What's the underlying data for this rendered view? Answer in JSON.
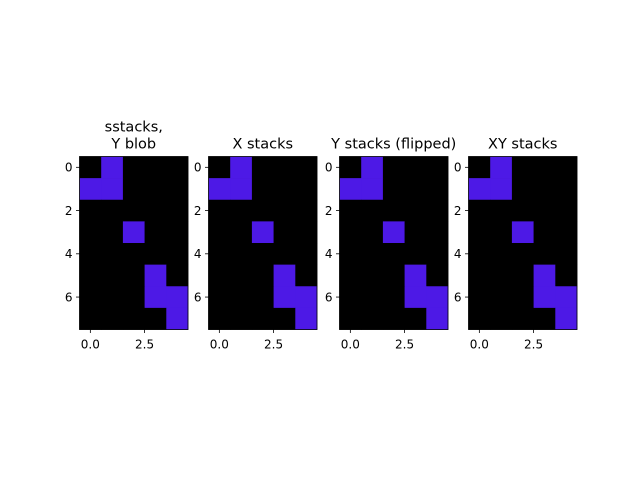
{
  "chart_data": [
    {
      "type": "heatmap",
      "title": [
        "sstacks,",
        "Y blob"
      ],
      "xlabel": "",
      "ylabel": "",
      "xlim": [
        -0.5,
        4.5
      ],
      "ylim": [
        7.5,
        -0.5
      ],
      "xticks": [
        {
          "value": 0,
          "label": "0.0"
        },
        {
          "value": 2.5,
          "label": "2.5"
        }
      ],
      "yticks": [
        {
          "value": 0,
          "label": "0"
        },
        {
          "value": 2,
          "label": "2"
        },
        {
          "value": 4,
          "label": "4"
        },
        {
          "value": 6,
          "label": "6"
        }
      ],
      "grid": false,
      "colors": {
        "off": "#000000",
        "on": "#4d19e6"
      },
      "matrix": [
        [
          0,
          1,
          0,
          0,
          0
        ],
        [
          1,
          1,
          0,
          0,
          0
        ],
        [
          0,
          0,
          0,
          0,
          0
        ],
        [
          0,
          0,
          1,
          0,
          0
        ],
        [
          0,
          0,
          0,
          0,
          0
        ],
        [
          0,
          0,
          0,
          1,
          0
        ],
        [
          0,
          0,
          0,
          1,
          1
        ],
        [
          0,
          0,
          0,
          0,
          1
        ]
      ]
    },
    {
      "type": "heatmap",
      "title": [
        "X stacks"
      ],
      "xlabel": "",
      "ylabel": "",
      "xlim": [
        -0.5,
        4.5
      ],
      "ylim": [
        7.5,
        -0.5
      ],
      "xticks": [
        {
          "value": 0,
          "label": "0.0"
        },
        {
          "value": 2.5,
          "label": "2.5"
        }
      ],
      "yticks": [
        {
          "value": 0,
          "label": "0"
        },
        {
          "value": 2,
          "label": "2"
        },
        {
          "value": 4,
          "label": "4"
        },
        {
          "value": 6,
          "label": "6"
        }
      ],
      "grid": false,
      "colors": {
        "off": "#000000",
        "on": "#4d19e6"
      },
      "matrix": [
        [
          0,
          1,
          0,
          0,
          0
        ],
        [
          1,
          1,
          0,
          0,
          0
        ],
        [
          0,
          0,
          0,
          0,
          0
        ],
        [
          0,
          0,
          1,
          0,
          0
        ],
        [
          0,
          0,
          0,
          0,
          0
        ],
        [
          0,
          0,
          0,
          1,
          0
        ],
        [
          0,
          0,
          0,
          1,
          1
        ],
        [
          0,
          0,
          0,
          0,
          1
        ]
      ]
    },
    {
      "type": "heatmap",
      "title": [
        "Y stacks (flipped)"
      ],
      "xlabel": "",
      "ylabel": "",
      "xlim": [
        -0.5,
        4.5
      ],
      "ylim": [
        7.5,
        -0.5
      ],
      "xticks": [
        {
          "value": 0,
          "label": "0.0"
        },
        {
          "value": 2.5,
          "label": "2.5"
        }
      ],
      "yticks": [
        {
          "value": 0,
          "label": "0"
        },
        {
          "value": 2,
          "label": "2"
        },
        {
          "value": 4,
          "label": "4"
        },
        {
          "value": 6,
          "label": "6"
        }
      ],
      "grid": false,
      "colors": {
        "off": "#000000",
        "on": "#4d19e6"
      },
      "matrix": [
        [
          0,
          1,
          0,
          0,
          0
        ],
        [
          1,
          1,
          0,
          0,
          0
        ],
        [
          0,
          0,
          0,
          0,
          0
        ],
        [
          0,
          0,
          1,
          0,
          0
        ],
        [
          0,
          0,
          0,
          0,
          0
        ],
        [
          0,
          0,
          0,
          1,
          0
        ],
        [
          0,
          0,
          0,
          1,
          1
        ],
        [
          0,
          0,
          0,
          0,
          1
        ]
      ]
    },
    {
      "type": "heatmap",
      "title": [
        "XY stacks"
      ],
      "xlabel": "",
      "ylabel": "",
      "xlim": [
        -0.5,
        4.5
      ],
      "ylim": [
        7.5,
        -0.5
      ],
      "xticks": [
        {
          "value": 0,
          "label": "0.0"
        },
        {
          "value": 2.5,
          "label": "2.5"
        }
      ],
      "yticks": [
        {
          "value": 0,
          "label": "0"
        },
        {
          "value": 2,
          "label": "2"
        },
        {
          "value": 4,
          "label": "4"
        },
        {
          "value": 6,
          "label": "6"
        }
      ],
      "grid": false,
      "colors": {
        "off": "#000000",
        "on": "#4d19e6"
      },
      "matrix": [
        [
          0,
          1,
          0,
          0,
          0
        ],
        [
          1,
          1,
          0,
          0,
          0
        ],
        [
          0,
          0,
          0,
          0,
          0
        ],
        [
          0,
          0,
          1,
          0,
          0
        ],
        [
          0,
          0,
          0,
          0,
          0
        ],
        [
          0,
          0,
          0,
          1,
          0
        ],
        [
          0,
          0,
          0,
          1,
          1
        ],
        [
          0,
          0,
          0,
          0,
          1
        ]
      ]
    }
  ]
}
